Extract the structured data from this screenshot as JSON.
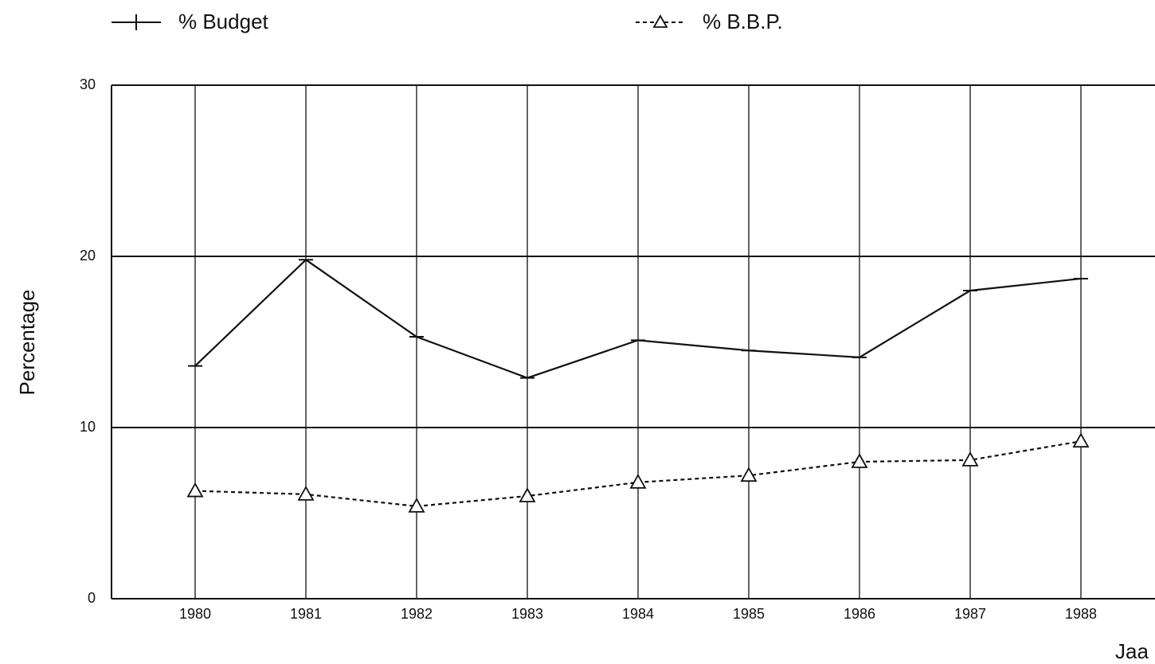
{
  "chart_data": {
    "type": "line",
    "y_label": "Percentage",
    "x_label": "Jaa",
    "categories": [
      "1980",
      "1981",
      "1982",
      "1983",
      "1984",
      "1985",
      "1986",
      "1987",
      "1988"
    ],
    "series": [
      {
        "name": "% Budget",
        "color": "#111111",
        "marker": "tick",
        "dash": "solid",
        "values": [
          13.6,
          19.8,
          15.3,
          12.9,
          15.1,
          14.5,
          14.1,
          18.0,
          18.7
        ]
      },
      {
        "name": "% B.B.P.",
        "color": "#111111",
        "marker": "triangle",
        "dash": "dotted",
        "values": [
          6.3,
          6.1,
          5.4,
          6.0,
          6.8,
          7.2,
          8.0,
          8.1,
          9.2
        ]
      }
    ],
    "ylim": [
      0,
      30
    ],
    "yticks": [
      0,
      10,
      20,
      30
    ],
    "grid": true
  }
}
